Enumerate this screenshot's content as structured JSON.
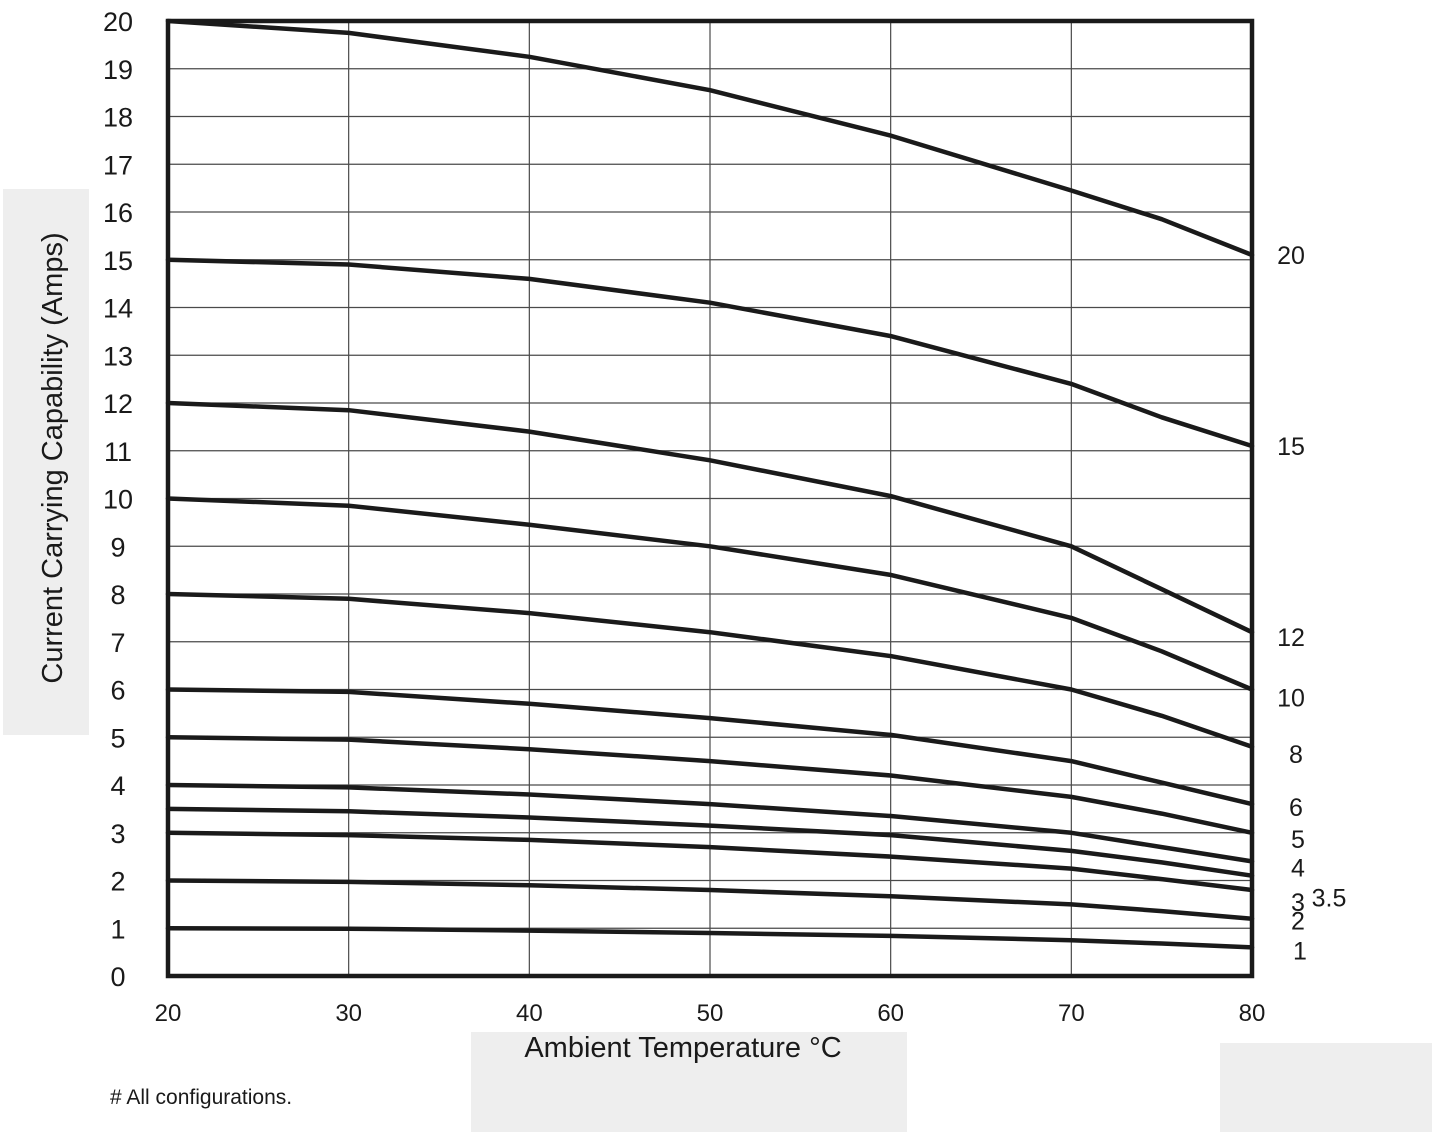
{
  "chart_data": {
    "type": "line",
    "xlabel": "Ambient Temperature °C",
    "ylabel": "Current Carrying Capability (Amps)",
    "xlim": [
      20,
      80
    ],
    "ylim": [
      0,
      20
    ],
    "x_ticks": [
      20,
      30,
      40,
      50,
      60,
      70,
      80
    ],
    "y_ticks": [
      0,
      1,
      2,
      3,
      4,
      5,
      6,
      7,
      8,
      9,
      10,
      11,
      12,
      13,
      14,
      15,
      16,
      17,
      18,
      19,
      20
    ],
    "grid": true,
    "x": [
      20,
      30,
      40,
      50,
      60,
      70,
      75,
      80
    ],
    "series": [
      {
        "name": "20",
        "values": [
          20.0,
          19.75,
          19.25,
          18.55,
          17.6,
          16.45,
          15.85,
          15.1
        ]
      },
      {
        "name": "15",
        "values": [
          15.0,
          14.9,
          14.6,
          14.1,
          13.4,
          12.4,
          11.7,
          11.1
        ]
      },
      {
        "name": "12",
        "values": [
          12.0,
          11.85,
          11.4,
          10.8,
          10.05,
          9.0,
          8.1,
          7.2
        ]
      },
      {
        "name": "10",
        "values": [
          10.0,
          9.85,
          9.45,
          9.0,
          8.4,
          7.5,
          6.8,
          6.0
        ]
      },
      {
        "name": "8",
        "values": [
          8.0,
          7.9,
          7.6,
          7.2,
          6.7,
          6.0,
          5.45,
          4.8
        ]
      },
      {
        "name": "6",
        "values": [
          6.0,
          5.95,
          5.7,
          5.4,
          5.05,
          4.5,
          4.05,
          3.6
        ]
      },
      {
        "name": "5",
        "values": [
          5.0,
          4.95,
          4.75,
          4.5,
          4.2,
          3.75,
          3.4,
          3.0
        ]
      },
      {
        "name": "4",
        "values": [
          4.0,
          3.95,
          3.8,
          3.6,
          3.35,
          3.0,
          2.7,
          2.4
        ]
      },
      {
        "name": "3.5",
        "values": [
          3.5,
          3.45,
          3.32,
          3.15,
          2.95,
          2.62,
          2.38,
          2.1
        ]
      },
      {
        "name": "3",
        "values": [
          3.0,
          2.95,
          2.85,
          2.7,
          2.5,
          2.25,
          2.03,
          1.8
        ]
      },
      {
        "name": "2",
        "values": [
          2.0,
          1.97,
          1.9,
          1.8,
          1.67,
          1.5,
          1.36,
          1.2
        ]
      },
      {
        "name": "1",
        "values": [
          1.0,
          0.99,
          0.95,
          0.9,
          0.84,
          0.75,
          0.68,
          0.6
        ]
      }
    ]
  },
  "footnote": "# All configurations."
}
